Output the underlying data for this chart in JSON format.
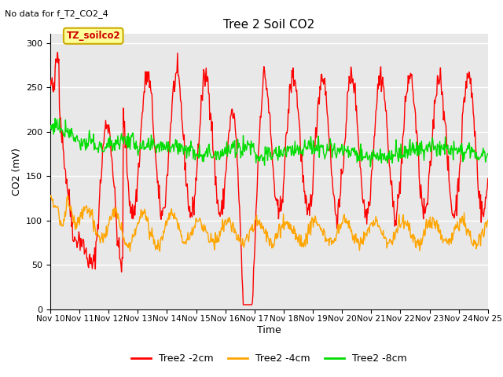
{
  "title": "Tree 2 Soil CO2",
  "subtitle": "No data for f_T2_CO2_4",
  "xlabel": "Time",
  "ylabel": "CO2 (mV)",
  "ylim": [
    0,
    310
  ],
  "xlim": [
    0,
    15
  ],
  "yticks": [
    0,
    50,
    100,
    150,
    200,
    250,
    300
  ],
  "xtick_labels": [
    "Nov 10",
    "Nov 11",
    "Nov 12",
    "Nov 13",
    "Nov 14",
    "Nov 15",
    "Nov 16",
    "Nov 17",
    "Nov 18",
    "Nov 19",
    "Nov 20",
    "Nov 21",
    "Nov 22",
    "Nov 23",
    "Nov 24",
    "Nov 25"
  ],
  "legend_label_2cm": "Tree2 -2cm",
  "legend_label_4cm": "Tree2 -4cm",
  "legend_label_8cm": "Tree2 -8cm",
  "color_2cm": "#FF0000",
  "color_4cm": "#FFA500",
  "color_8cm": "#00DD00",
  "bg_color": "#E8E8E8",
  "annotation_box_text": "TZ_soilco2",
  "annotation_box_facecolor": "#FFFF99",
  "annotation_box_edgecolor": "#CCAA00",
  "grid_color": "#FFFFFF",
  "linewidth": 1.0,
  "n_days": 15,
  "pts_per_day": 48
}
